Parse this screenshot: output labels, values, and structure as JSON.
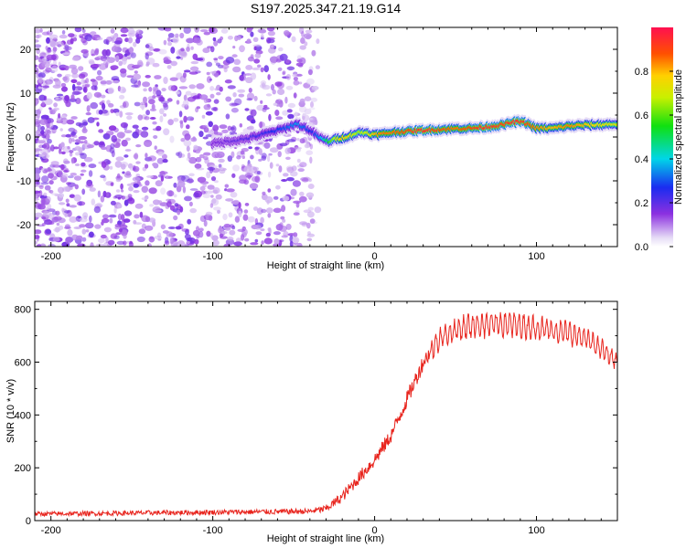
{
  "title": "S197.2025.347.21.19.G14",
  "chart_data": [
    {
      "type": "heatmap",
      "xlabel": "Height of straight line (km)",
      "ylabel": "Frequency (Hz)",
      "xlim": [
        -210,
        150
      ],
      "ylim": [
        -25,
        25
      ],
      "xticks": [
        -200,
        -100,
        0,
        100
      ],
      "xtick_labels": [
        "-200",
        "-100",
        "0",
        "100"
      ],
      "yticks": [
        -20,
        -10,
        0,
        10,
        20
      ],
      "ytick_labels": [
        "-20",
        "-10",
        "0",
        "10",
        "20"
      ],
      "colorbar": {
        "label": "Normalized spectral amplitude",
        "range": [
          0,
          1
        ],
        "ticks": [
          0,
          0.2,
          0.4,
          0.6,
          0.8
        ],
        "tick_labels": [
          "0.0",
          "0.2",
          "0.4",
          "0.6",
          "0.8"
        ]
      },
      "noise_region_km": [
        -210,
        -35
      ],
      "ridge": {
        "x": [
          -100,
          -80,
          -65,
          -55,
          -48,
          -42,
          -38,
          -32,
          -28,
          -24,
          -20,
          -15,
          -10,
          -5,
          0,
          5,
          10,
          20,
          30,
          40,
          50,
          60,
          70,
          80,
          85,
          90,
          95,
          100,
          110,
          120,
          130,
          140,
          150
        ],
        "y": [
          -1.5,
          -0.5,
          1.0,
          2.0,
          3.0,
          2.0,
          1.0,
          -0.5,
          -1.0,
          -0.5,
          -0.2,
          0.3,
          1.0,
          1.0,
          0.5,
          0.7,
          1.0,
          1.3,
          1.5,
          1.7,
          1.9,
          2.0,
          2.3,
          2.8,
          3.3,
          3.5,
          3.0,
          2.0,
          2.0,
          2.5,
          2.7,
          2.8,
          3.0
        ],
        "amp": [
          0.15,
          0.2,
          0.25,
          0.3,
          0.35,
          0.3,
          0.25,
          0.4,
          0.55,
          0.7,
          0.8,
          0.75,
          0.65,
          0.7,
          0.8,
          0.85,
          0.85,
          0.9,
          0.95,
          0.9,
          0.85,
          0.9,
          0.95,
          0.9,
          0.95,
          0.95,
          0.9,
          0.85,
          0.8,
          0.85,
          0.8,
          0.75,
          0.7
        ]
      }
    },
    {
      "type": "line",
      "xlabel": "Height of straight line (km)",
      "ylabel": "SNR (10 * v/v)",
      "xlim": [
        -210,
        150
      ],
      "ylim": [
        0,
        830
      ],
      "xticks": [
        -200,
        -100,
        0,
        100
      ],
      "xtick_labels": [
        "-200",
        "-100",
        "0",
        "100"
      ],
      "yticks": [
        0,
        200,
        400,
        600,
        800
      ],
      "ytick_labels": [
        "0",
        "200",
        "400",
        "600",
        "800"
      ],
      "color": "#e8251e",
      "profile": {
        "x": [
          -210,
          -40,
          -30,
          -20,
          -10,
          0,
          10,
          20,
          30,
          40,
          50,
          60,
          80,
          100,
          110,
          120,
          130,
          140,
          150
        ],
        "y": [
          25,
          35,
          45,
          90,
          160,
          230,
          320,
          460,
          600,
          690,
          720,
          740,
          745,
          730,
          720,
          710,
          690,
          650,
          600
        ],
        "noise": [
          12,
          15,
          20,
          30,
          35,
          40,
          40,
          45,
          45,
          40,
          40,
          45,
          45,
          40,
          40,
          40,
          35,
          35,
          30
        ]
      }
    }
  ]
}
